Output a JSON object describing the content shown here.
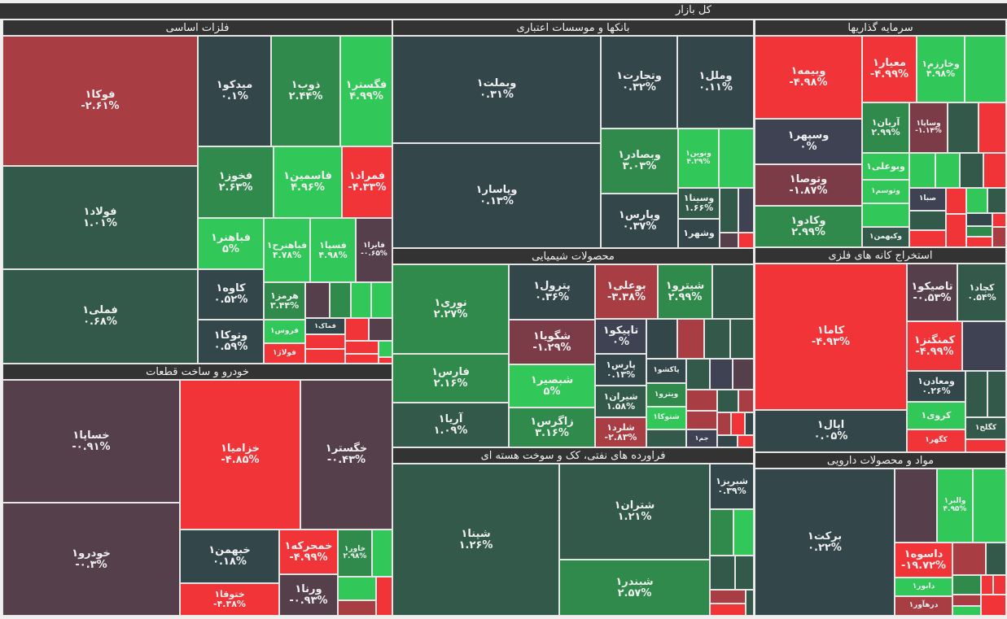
{
  "header": {
    "title": "کل بازار"
  },
  "palette": {
    "N": "#33474b",
    "Z": "#3e4253",
    "G1": "#33594b",
    "G2": "#2f8a4c",
    "G3": "#31c859",
    "R1": "#553f4a",
    "MR": "#7c3c47",
    "R2": "#a83d44",
    "R3": "#f13438"
  },
  "sectors": [
    {
      "title": "فلزات اساسی",
      "tiles": [
        {
          "symbol": "فوکا۱",
          "change": "-۲.۶۱%",
          "tone": "R2"
        },
        {
          "symbol": "فولاد۱",
          "change": "۱.۰۱%",
          "tone": "G1"
        },
        {
          "symbol": "فملی۱",
          "change": "۰.۶۸%",
          "tone": "G1"
        },
        {
          "symbol": "میدکو۱",
          "change": "۰.۱%",
          "tone": "N"
        },
        {
          "symbol": "ذوب۱",
          "change": "۲.۴۴%",
          "tone": "G2"
        },
        {
          "symbol": "فگستر۱",
          "change": "۴.۹۹%",
          "tone": "G3"
        },
        {
          "symbol": "فخوز۱",
          "change": "۲.۶۳%",
          "tone": "G2"
        },
        {
          "symbol": "فاسمین۱",
          "change": "۴.۹۶%",
          "tone": "G3"
        },
        {
          "symbol": "فمراد۱",
          "change": "-۴.۳۳%",
          "tone": "R3"
        },
        {
          "symbol": "فباهنر۱",
          "change": "۵%",
          "tone": "G3"
        },
        {
          "symbol": "فباهنرح۱",
          "change": "۴.۷۸%",
          "tone": "G3"
        },
        {
          "symbol": "فسپا۱",
          "change": "۴.۹۸%",
          "tone": "G3"
        },
        {
          "symbol": "فایرا۱",
          "change": "-۰.۶۵%",
          "tone": "R1"
        },
        {
          "symbol": "کاوه۱",
          "change": "۰.۵۲%",
          "tone": "N"
        },
        {
          "symbol": "وتوکا۱",
          "change": "۰.۵۹%",
          "tone": "N"
        },
        {
          "symbol": "هرمز۱",
          "change": "۳.۴۴%",
          "tone": "G2"
        },
        {
          "symbol": "فروس۱",
          "tone": "G3"
        },
        {
          "symbol": "فولاژ۱",
          "tone": "R3"
        },
        {
          "tone": "R1"
        },
        {
          "tone": "G2"
        },
        {
          "tone": "G3"
        },
        {
          "tone": "G3"
        },
        {
          "symbol": "فماک۱",
          "tone": "N"
        },
        {
          "tone": "R3"
        },
        {
          "tone": "R1"
        },
        {
          "tone": "R3"
        },
        {
          "tone": "R3"
        },
        {
          "tone": "R3"
        },
        {
          "tone": "R3"
        },
        {
          "tone": "G3"
        },
        {
          "tone": "R3"
        }
      ]
    },
    {
      "title": "خودرو و ساخت قطعات",
      "tiles": [
        {
          "symbol": "خساپا۱",
          "change": "-۰.۹۱%",
          "tone": "R1"
        },
        {
          "symbol": "خودرو۱",
          "change": "-۰.۳%",
          "tone": "R1"
        },
        {
          "symbol": "خزامیا۱",
          "change": "-۴.۸۵%",
          "tone": "R3"
        },
        {
          "symbol": "خگستر۱",
          "change": "-۰.۴۳%",
          "tone": "R1"
        },
        {
          "symbol": "خبهمن۱",
          "change": "۰.۱۸%",
          "tone": "N"
        },
        {
          "symbol": "ختوقا۱",
          "change": "-۴.۳۸%",
          "tone": "R3"
        },
        {
          "symbol": "خمحرکه۱",
          "change": "-۴.۹۹%",
          "tone": "R3"
        },
        {
          "symbol": "ورنا۱",
          "change": "-۰.۹۳%",
          "tone": "R1"
        },
        {
          "symbol": "خاور۱",
          "change": "۲.۹۸%",
          "tone": "G2"
        },
        {
          "tone": "G3"
        },
        {
          "tone": "G3"
        },
        {
          "tone": "R2"
        },
        {
          "tone": "R3"
        }
      ]
    },
    {
      "title": "بانکها و موسسات اعتباری",
      "tiles": [
        {
          "symbol": "وبملت۱",
          "change": "۰.۳۱%",
          "tone": "N"
        },
        {
          "symbol": "وپاسار۱",
          "change": "۰.۱۳%",
          "tone": "N"
        },
        {
          "symbol": "وتجارت۱",
          "change": "۰.۳۲%",
          "tone": "N"
        },
        {
          "symbol": "وملل۱",
          "change": "۰.۱۱%",
          "tone": "N"
        },
        {
          "symbol": "وبصادر۱",
          "change": "۳.۰۳%",
          "tone": "G2"
        },
        {
          "symbol": "ونوین۱",
          "change": "۴.۲۹%",
          "tone": "G3"
        },
        {
          "tone": "G3"
        },
        {
          "symbol": "وپارس۱",
          "change": "۰.۳۷%",
          "tone": "N"
        },
        {
          "symbol": "وسینا۱",
          "change": "۱.۶۶%",
          "tone": "G1"
        },
        {
          "symbol": "وشهر۱",
          "tone": "N"
        },
        {
          "tone": "G1"
        },
        {
          "tone": "Z"
        },
        {
          "tone": "R1"
        },
        {
          "tone": "R3"
        }
      ]
    },
    {
      "title": "محصولات شیمیایی",
      "tiles": [
        {
          "symbol": "نوری۱",
          "change": "۲.۲۷%",
          "tone": "G2"
        },
        {
          "symbol": "فارس۱",
          "change": "۲.۱۶%",
          "tone": "G2"
        },
        {
          "symbol": "آریا۱",
          "change": "۱.۰۹%",
          "tone": "G1"
        },
        {
          "symbol": "پترول۱",
          "change": "۰.۳۶%",
          "tone": "N"
        },
        {
          "symbol": "شگویا۱",
          "change": "-۱.۲۹%",
          "tone": "MR"
        },
        {
          "symbol": "شبصیر۱",
          "change": "۵%",
          "tone": "G3"
        },
        {
          "symbol": "زاگرس۱",
          "change": "۳.۱۶%",
          "tone": "G2"
        },
        {
          "symbol": "بوعلی۱",
          "change": "-۳.۳۸%",
          "tone": "R2"
        },
        {
          "symbol": "شیترو۱",
          "change": "۲.۹۹%",
          "tone": "G2"
        },
        {
          "tone": "G1"
        },
        {
          "symbol": "تاپیکو۱",
          "change": "۰%",
          "tone": "Z"
        },
        {
          "tone": "N"
        },
        {
          "tone": "R2"
        },
        {
          "tone": "G1"
        },
        {
          "tone": "G1"
        },
        {
          "symbol": "پارس۱",
          "change": "۰.۱۳%",
          "tone": "N"
        },
        {
          "symbol": "شیران۱",
          "change": "۱.۵۸%",
          "tone": "G1"
        },
        {
          "symbol": "شلرد۱",
          "change": "-۲.۸۳%",
          "tone": "R2"
        },
        {
          "symbol": "پاکشو۱",
          "tone": "N"
        },
        {
          "symbol": "ویترو۱",
          "tone": "G2"
        },
        {
          "symbol": "شتوکا۱",
          "tone": "G3"
        },
        {
          "tone": "G1"
        },
        {
          "tone": "G1"
        },
        {
          "tone": "Z"
        },
        {
          "tone": "R1"
        },
        {
          "tone": "R2"
        },
        {
          "tone": "G1"
        },
        {
          "tone": "R2"
        },
        {
          "tone": "R2"
        },
        {
          "symbol": "جم۱",
          "tone": "Z"
        },
        {
          "tone": "R2"
        },
        {
          "tone": "R3"
        },
        {
          "tone": "N"
        },
        {
          "tone": "N"
        },
        {
          "tone": "R3"
        }
      ]
    },
    {
      "title": "فراورده های نفتی، کک و سوخت هسته ای",
      "tiles": [
        {
          "symbol": "شپنا۱",
          "change": "۱.۲۶%",
          "tone": "G1"
        },
        {
          "symbol": "شتران۱",
          "change": "۱.۲۱%",
          "tone": "G1"
        },
        {
          "symbol": "شبندر۱",
          "change": "۲.۵۷%",
          "tone": "G2"
        },
        {
          "symbol": "شبریز۱",
          "change": "۰.۳۹%",
          "tone": "N"
        },
        {
          "tone": "G2"
        },
        {
          "tone": "G3"
        },
        {
          "tone": "G1"
        },
        {
          "tone": "G1"
        },
        {
          "tone": "R2"
        },
        {
          "tone": "R3"
        },
        {
          "tone": "G1"
        }
      ]
    },
    {
      "title": "سرمایه گذاریها",
      "tiles": [
        {
          "symbol": "وبیمه۱",
          "change": "-۴.۹۸%",
          "tone": "R3"
        },
        {
          "symbol": "وسپهر۱",
          "change": "۰%",
          "tone": "Z"
        },
        {
          "symbol": "وتوصا۱",
          "change": "-۱.۸۷%",
          "tone": "MR"
        },
        {
          "symbol": "وکادو۱",
          "change": "۲.۹۹%",
          "tone": "G2"
        },
        {
          "symbol": "معیار۱",
          "change": "-۴.۹۹%",
          "tone": "R3"
        },
        {
          "symbol": "وخارزم۱",
          "change": "۴.۹۸%",
          "tone": "G3"
        },
        {
          "tone": "G3"
        },
        {
          "symbol": "آریان۱",
          "change": "۲.۹۹%",
          "tone": "G2"
        },
        {
          "symbol": "وساپا۱",
          "change": "-۱.۱۴%",
          "tone": "MR"
        },
        {
          "tone": "G1"
        },
        {
          "tone": "R3"
        },
        {
          "symbol": "وبوعلی۱",
          "tone": "G3"
        },
        {
          "symbol": "وتوسم۱",
          "tone": "G3"
        },
        {
          "tone": "G3"
        },
        {
          "symbol": "وکبهمن۱",
          "tone": "G1"
        },
        {
          "tone": "G3"
        },
        {
          "tone": "G3"
        },
        {
          "tone": "G1"
        },
        {
          "tone": "R3"
        },
        {
          "symbol": "صبا۱",
          "tone": "Z"
        },
        {
          "tone": "R3"
        },
        {
          "tone": "G3"
        },
        {
          "tone": "G1"
        },
        {
          "tone": "G1"
        },
        {
          "tone": "R3"
        },
        {
          "tone": "R3"
        },
        {
          "tone": "N"
        },
        {
          "tone": "R3"
        },
        {
          "tone": "G2"
        },
        {
          "tone": "R3"
        },
        {
          "tone": "R2"
        }
      ]
    },
    {
      "title": "استخراج کانه های فلزی",
      "tiles": [
        {
          "symbol": "کاما۱",
          "change": "-۴.۹۳%",
          "tone": "R3"
        },
        {
          "symbol": "اپال۱",
          "change": "۰.۰۵%",
          "tone": "N"
        },
        {
          "symbol": "تاصیکو۱",
          "change": "-۰.۵۳%",
          "tone": "R1"
        },
        {
          "symbol": "کچاد۱",
          "change": "۰.۵۴%",
          "tone": "G1"
        },
        {
          "symbol": "کمنگنز۱",
          "change": "-۴.۹۹%",
          "tone": "R3"
        },
        {
          "tone": "Z"
        },
        {
          "symbol": "ومعادن۱",
          "change": "۰.۲۶%",
          "tone": "N"
        },
        {
          "symbol": "کروی۱",
          "tone": "G3"
        },
        {
          "symbol": "کگهر۱",
          "tone": "R3"
        },
        {
          "tone": "G1"
        },
        {
          "tone": "G1"
        },
        {
          "symbol": "کگلخ۱",
          "tone": "G1"
        },
        {
          "tone": "R3"
        }
      ]
    },
    {
      "title": "مواد و محصولات دارویی",
      "tiles": [
        {
          "symbol": "برکت۱",
          "change": "۰.۲۲%",
          "tone": "N"
        },
        {
          "tone": "R1"
        },
        {
          "symbol": "والبر۱",
          "change": "۴.۹۵%",
          "tone": "G3"
        },
        {
          "tone": "G3"
        },
        {
          "symbol": "داسوه۱",
          "change": "-۱۹.۷۲%",
          "tone": "R3"
        },
        {
          "symbol": "دابور۱",
          "tone": "G3"
        },
        {
          "symbol": "درهآور۱",
          "tone": "R2"
        },
        {
          "tone": "R2"
        },
        {
          "tone": "G1"
        },
        {
          "tone": "G2"
        },
        {
          "tone": "R2"
        },
        {
          "tone": "G3"
        },
        {
          "tone": "R3"
        },
        {
          "tone": "R3"
        },
        {
          "tone": "R3"
        }
      ]
    }
  ]
}
